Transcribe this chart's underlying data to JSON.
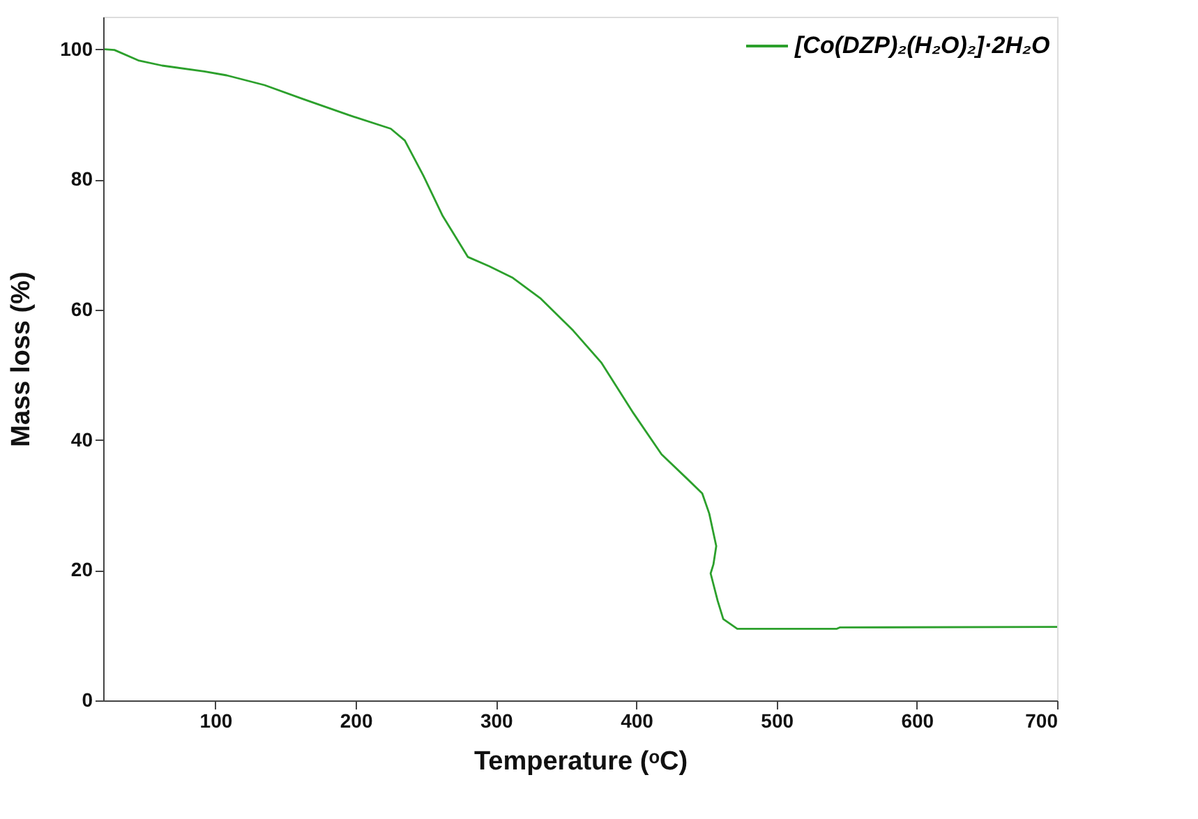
{
  "chart_data": {
    "type": "line",
    "xlabel": "Temperature (ᵒC)",
    "ylabel": "Mass loss (%)",
    "xlim": [
      20,
      700
    ],
    "xticks": [
      100,
      200,
      300,
      400,
      500,
      600,
      700
    ],
    "ylim": [
      0,
      105
    ],
    "yticks": [
      0,
      20,
      40,
      60,
      80,
      100
    ],
    "grid": false,
    "legend": "top right",
    "marker": "none",
    "line_style": "solid",
    "series": [
      {
        "name": "[Co(DZP)₂(H₂O)₂]·2H₂O",
        "color": "#2ca02c",
        "x": [
          21,
          28,
          45,
          62,
          92,
          108,
          135,
          162,
          195,
          225,
          235,
          248,
          262,
          272,
          280,
          295,
          312,
          332,
          355,
          375,
          398,
          418,
          435,
          447,
          452,
          457,
          455,
          453,
          458,
          462,
          472,
          543,
          545,
          700
        ],
        "values": [
          100,
          99.9,
          98.3,
          97.5,
          96.6,
          96,
          94.5,
          92.4,
          89.9,
          87.8,
          86,
          80.7,
          74.4,
          70.9,
          68.1,
          66.7,
          64.9,
          61.7,
          56.8,
          51.9,
          44.1,
          37.8,
          34.3,
          31.8,
          28.7,
          23.7,
          20.9,
          19.5,
          15.3,
          12.5,
          11.0,
          11.0,
          11.2,
          11.3
        ]
      }
    ]
  }
}
